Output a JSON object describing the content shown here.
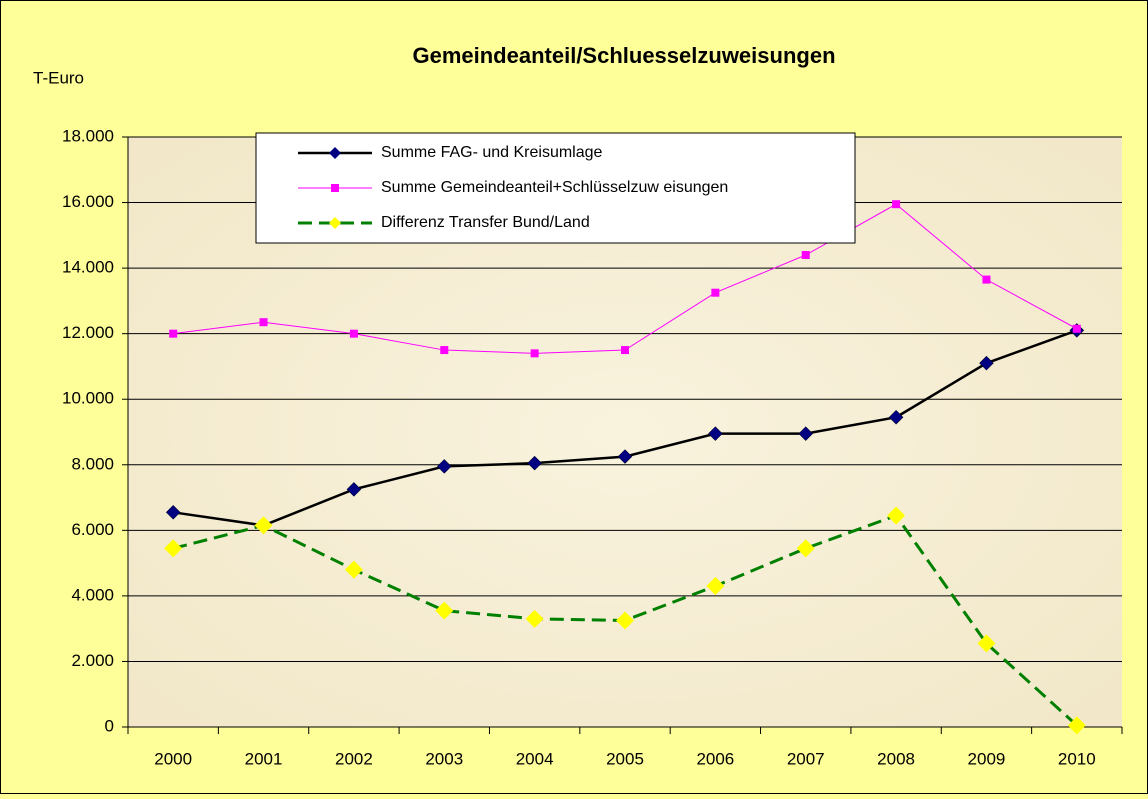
{
  "chart_data": {
    "type": "line",
    "title": "Gemeindeanteil/Schluesselzuweisungen",
    "y_label": "T-Euro",
    "categories": [
      "2000",
      "2001",
      "2002",
      "2003",
      "2004",
      "2005",
      "2006",
      "2007",
      "2008",
      "2009",
      "2010"
    ],
    "series": [
      {
        "name": "Summe FAG- und Kreisumlage",
        "color": "#000000",
        "marker_color": "#000080",
        "marker": "diamond",
        "dash": false,
        "values": [
          6550,
          6150,
          7250,
          7950,
          8050,
          8250,
          8950,
          8950,
          9450,
          11100,
          12100
        ]
      },
      {
        "name": "Summe Gemeindeanteil+Schlüsselzuw eisungen",
        "color": "#ff00ff",
        "marker_color": "#ff00ff",
        "marker": "square",
        "dash": false,
        "values": [
          12000,
          12350,
          12000,
          11500,
          11400,
          11500,
          13250,
          14400,
          15950,
          13650,
          12150
        ]
      },
      {
        "name": "Differenz Transfer Bund/Land",
        "color": "#008000",
        "marker_color": "#ffff00",
        "marker": "diamond",
        "dash": true,
        "values": [
          5450,
          6150,
          4800,
          3550,
          3300,
          3250,
          4300,
          5450,
          6450,
          2550,
          50
        ]
      }
    ],
    "ylim": [
      0,
      18000
    ],
    "yticks": [
      0,
      {
        "value": 2000,
        "label": "2.000"
      },
      {
        "value": 4000,
        "label": "4.000"
      },
      {
        "value": 6000,
        "label": "6.000"
      },
      {
        "value": 8000,
        "label": "8.000"
      },
      {
        "value": 10000,
        "label": "10.000"
      },
      {
        "value": 12000,
        "label": "12.000"
      },
      {
        "value": 14000,
        "label": "14.000"
      },
      {
        "value": 16000,
        "label": "16.000"
      },
      {
        "value": 18000,
        "label": "18.000"
      }
    ],
    "grid": true
  }
}
